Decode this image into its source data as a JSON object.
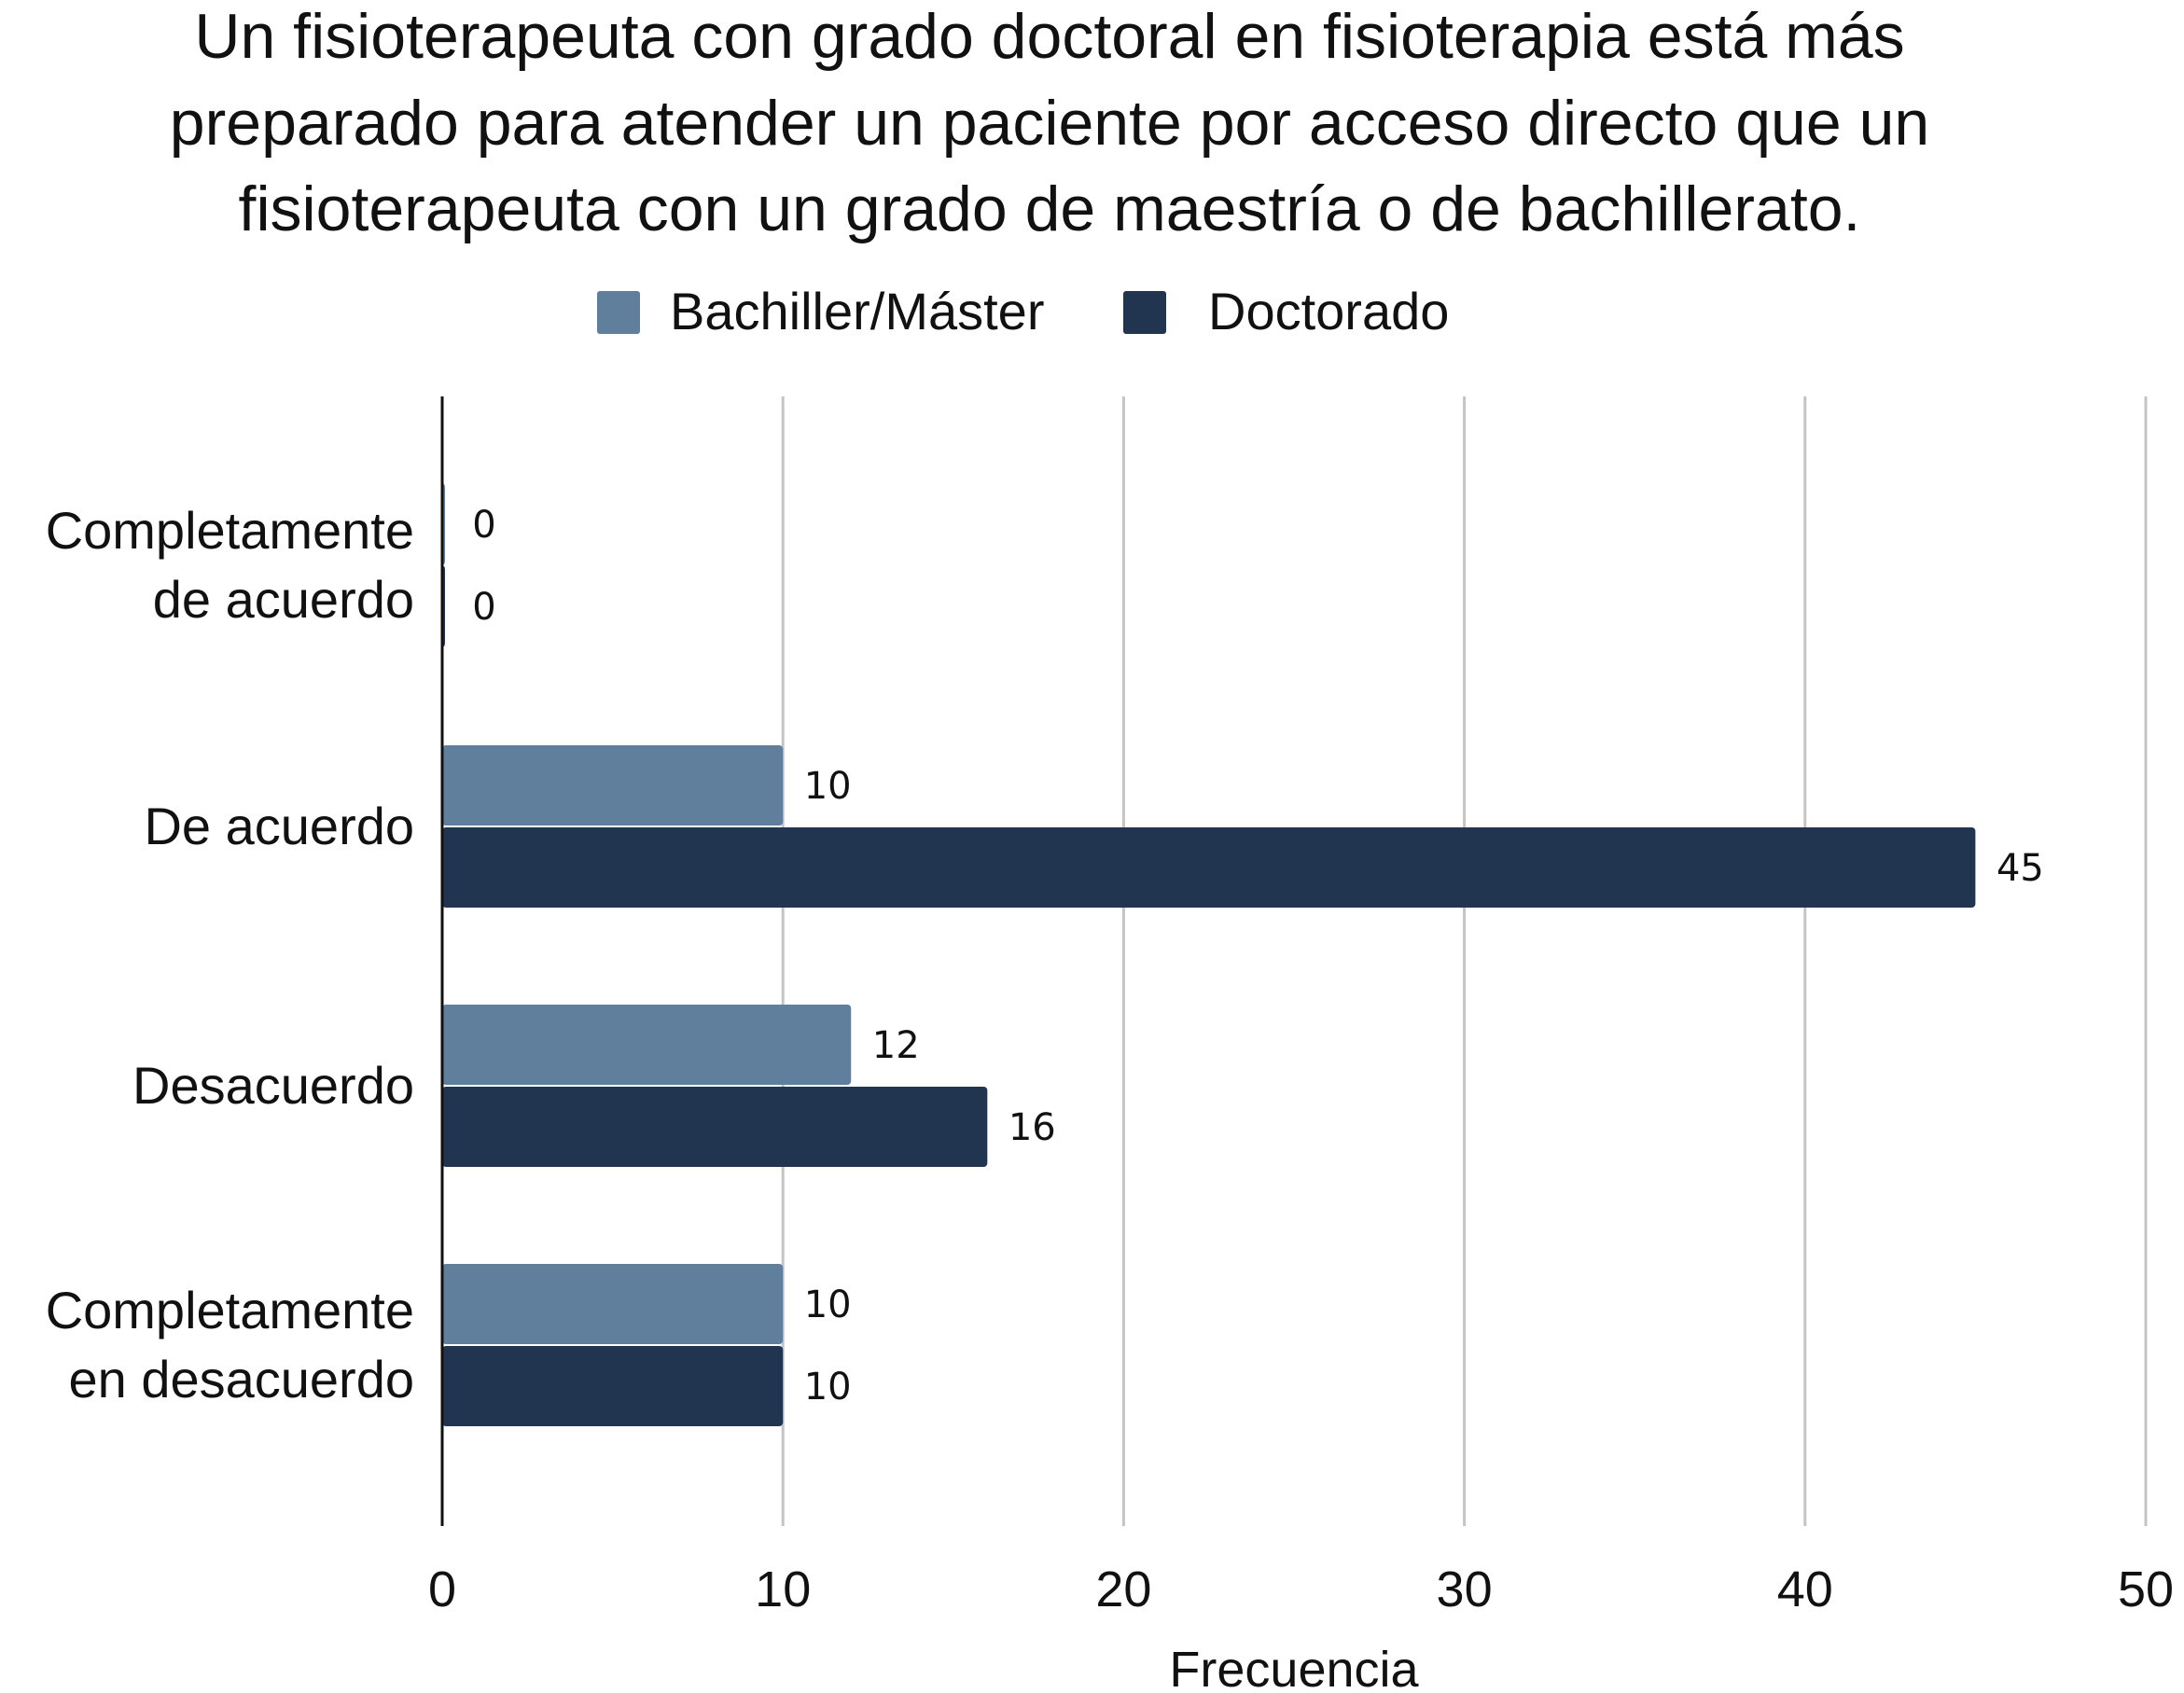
{
  "chart_data": {
    "type": "bar",
    "orientation": "horizontal",
    "title_lines": [
      "Un fisioterapeuta con grado doctoral en fisioterapia está más",
      "preparado para atender un paciente por acceso directo que un",
      "fisioterapeuta con un grado de maestría o de bachillerato."
    ],
    "categories": [
      [
        "Completamente",
        "de acuerdo"
      ],
      [
        "De acuerdo"
      ],
      [
        "Desacuerdo"
      ],
      [
        "Completamente",
        "en desacuerdo"
      ]
    ],
    "series": [
      {
        "name": "Bachiller/Máster",
        "color": "#5f7f9c",
        "values": [
          0,
          10,
          12,
          10
        ]
      },
      {
        "name": "Doctorado",
        "color": "#223550",
        "values": [
          0,
          45,
          16,
          10
        ]
      }
    ],
    "xlabel": "Frecuencia",
    "ylabel": "",
    "xlim": [
      0,
      50
    ],
    "xticks": [
      "0",
      "10",
      "20",
      "30",
      "40",
      "50"
    ],
    "grid": "vertical",
    "legend_position": "top-center"
  }
}
